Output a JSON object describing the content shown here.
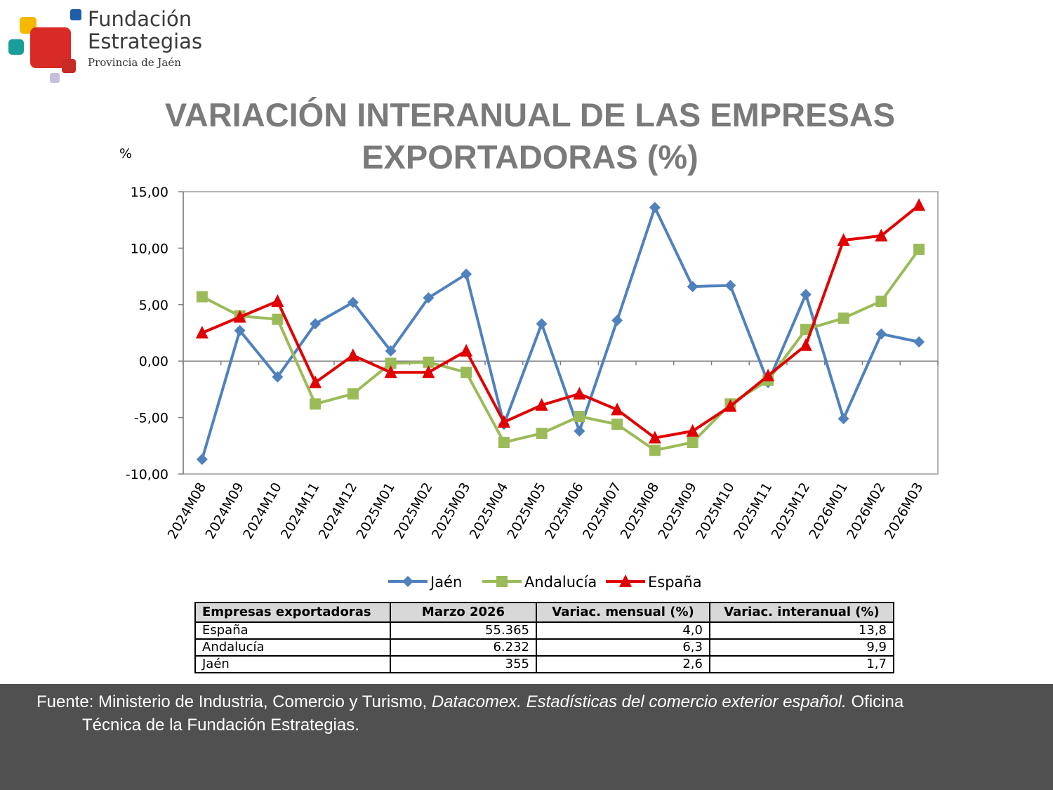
{
  "header": {
    "org_line1": "Fundación",
    "org_line2": "Estrategias",
    "org_line3": "Provincia de Jaén",
    "logo": "fundacion-estrategias-logo"
  },
  "title_line1": "VARIACIÓN INTERANUAL DE LAS EMPRESAS",
  "title_line2": "EXPORTADORAS (%)",
  "chart_data": {
    "type": "line",
    "ylabel": "%",
    "ylim": [
      -10,
      15
    ],
    "yticks": [
      "15,00",
      "10,00",
      "5,00",
      "0,00",
      "-5,00",
      "-10,00"
    ],
    "ytick_values": [
      15,
      10,
      5,
      0,
      -5,
      -10
    ],
    "categories": [
      "2024M08",
      "2024M09",
      "2024M10",
      "2024M11",
      "2024M12",
      "2025M01",
      "2025M02",
      "2025M03",
      "2025M04",
      "2025M05",
      "2025M06",
      "2025M07",
      "2025M08",
      "2025M09",
      "2025M10",
      "2025M11",
      "2025M12",
      "2026M01",
      "2026M02",
      "2026M03"
    ],
    "legend_position": "bottom",
    "grid": false,
    "series": [
      {
        "name": "Jaén",
        "color": "#4f81bd",
        "marker": "diamond",
        "values": [
          -8.7,
          2.7,
          -1.4,
          3.3,
          5.2,
          0.9,
          5.6,
          7.7,
          -5.6,
          3.3,
          -6.2,
          3.6,
          13.6,
          6.6,
          6.7,
          -1.9,
          5.9,
          -5.1,
          2.4,
          1.7
        ]
      },
      {
        "name": "Andalucía",
        "color": "#9bbb59",
        "marker": "square",
        "values": [
          5.7,
          4.0,
          3.7,
          -3.8,
          -2.9,
          -0.2,
          -0.1,
          -1.0,
          -7.2,
          -6.4,
          -4.9,
          -5.6,
          -7.9,
          -7.2,
          -3.8,
          -1.7,
          2.8,
          3.8,
          5.3,
          9.9
        ]
      },
      {
        "name": "España",
        "color": "#e00000",
        "marker": "triangle",
        "values": [
          2.5,
          3.9,
          5.3,
          -1.9,
          0.5,
          -1.0,
          -1.0,
          0.9,
          -5.4,
          -3.9,
          -2.9,
          -4.3,
          -6.8,
          -6.2,
          -4.0,
          -1.3,
          1.4,
          10.7,
          11.1,
          13.8
        ]
      }
    ]
  },
  "table": {
    "headers": [
      "Empresas exportadoras",
      "Marzo 2026",
      "Variac. mensual (%)",
      "Variac. interanual (%)"
    ],
    "rows": [
      [
        "España",
        "55.365",
        "4,0",
        "13,8"
      ],
      [
        "Andalucía",
        "6.232",
        "6,3",
        "9,9"
      ],
      [
        "Jaén",
        "355",
        "2,6",
        "1,7"
      ]
    ]
  },
  "footer": {
    "part1": "Fuente: Ministerio de Industria, Comercio y Turismo, ",
    "part2_italic": "Datacomex. Estadísticas del comercio exterior español.",
    "part3": "  Oficina",
    "line2": "Técnica de la Fundación Estrategias."
  }
}
